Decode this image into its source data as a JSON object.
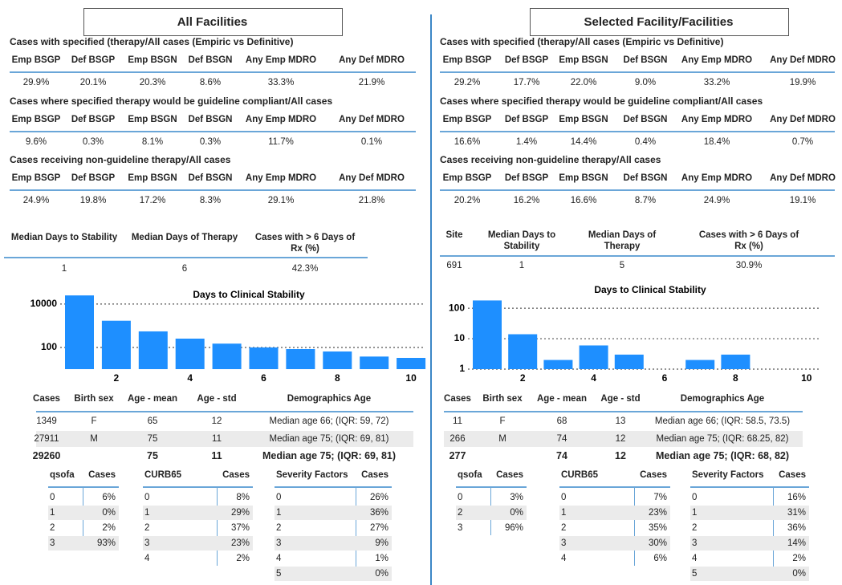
{
  "panels": [
    {
      "title": "All Facilities",
      "sections": [
        {
          "heading": "Cases with specified (therapy/All cases (Empiric vs Definitive)",
          "columns": [
            "Emp BSGP",
            "Def BSGP",
            "Emp BSGN",
            "Def BSGN",
            "Any Emp MDRO",
            "Any Def MDRO"
          ],
          "values": [
            "29.9%",
            "20.1%",
            "20.3%",
            "8.6%",
            "33.3%",
            "21.9%"
          ]
        },
        {
          "heading": "Cases where specified therapy would be guideline compliant/All cases",
          "columns": [
            "Emp BSGP",
            "Def BSGP",
            "Emp BSGN",
            "Def BSGN",
            "Any Emp MDRO",
            "Any Def MDRO"
          ],
          "values": [
            "9.6%",
            "0.3%",
            "8.1%",
            "0.3%",
            "11.7%",
            "0.1%"
          ]
        },
        {
          "heading": "Cases receiving non-guideline therapy/All cases",
          "columns": [
            "Emp BSGP",
            "Def BSGP",
            "Emp BSGN",
            "Def BSGN",
            "Any Emp MDRO",
            "Any Def MDRO"
          ],
          "values": [
            "24.9%",
            "19.8%",
            "17.2%",
            "8.3%",
            "29.1%",
            "21.8%"
          ]
        }
      ],
      "summary": {
        "columns": [
          "Median Days to Stability",
          "Median Days of Therapy",
          "Cases with > 6 Days of Rx (%)"
        ],
        "values": [
          "1",
          "6",
          "42.3%"
        ]
      },
      "demographics": {
        "columns": [
          "Cases",
          "Birth sex",
          "Age - mean",
          "Age - std",
          "Demographics Age"
        ],
        "rows": [
          [
            "1349",
            "F",
            "65",
            "12",
            "Median age 66; (IQR: 59, 72)"
          ],
          [
            "27911",
            "M",
            "75",
            "11",
            "Median age 75; (IQR: 69, 81)"
          ]
        ],
        "total": [
          "29260",
          "75",
          "11",
          "Median age 75; (IQR: 69, 81)"
        ]
      },
      "breakdowns": [
        {
          "columns": [
            "qsofa",
            "Cases"
          ],
          "rows": [
            [
              "0",
              "6%"
            ],
            [
              "1",
              "0%"
            ],
            [
              "2",
              "2%"
            ],
            [
              "3",
              "93%"
            ]
          ]
        },
        {
          "columns": [
            "CURB65",
            "Cases"
          ],
          "rows": [
            [
              "0",
              "8%"
            ],
            [
              "1",
              "29%"
            ],
            [
              "2",
              "37%"
            ],
            [
              "3",
              "23%"
            ],
            [
              "4",
              "2%"
            ]
          ]
        },
        {
          "columns": [
            "Severity Factors",
            "Cases"
          ],
          "rows": [
            [
              "0",
              "26%"
            ],
            [
              "1",
              "36%"
            ],
            [
              "2",
              "27%"
            ],
            [
              "3",
              "9%"
            ],
            [
              "4",
              "1%"
            ],
            [
              "5",
              "0%"
            ]
          ]
        }
      ]
    },
    {
      "title": "Selected Facility/Facilities",
      "sections": [
        {
          "heading": "Cases with specified (therapy/All cases (Empiric vs Definitive)",
          "columns": [
            "Emp BSGP",
            "Def BSGP",
            "Emp BSGN",
            "Def BSGN",
            "Any Emp MDRO",
            "Any Def MDRO"
          ],
          "values": [
            "29.2%",
            "17.7%",
            "22.0%",
            "9.0%",
            "33.2%",
            "19.9%"
          ]
        },
        {
          "heading": "Cases where specified therapy would be guideline compliant/All cases",
          "columns": [
            "Emp BSGP",
            "Def BSGP",
            "Emp BSGN",
            "Def BSGN",
            "Any Emp MDRO",
            "Any Def MDRO"
          ],
          "values": [
            "16.6%",
            "1.4%",
            "14.4%",
            "0.4%",
            "18.4%",
            "0.7%"
          ]
        },
        {
          "heading": "Cases receiving non-guideline therapy/All cases",
          "columns": [
            "Emp BSGP",
            "Def BSGP",
            "Emp BSGN",
            "Def BSGN",
            "Any Emp MDRO",
            "Any Def MDRO"
          ],
          "values": [
            "20.2%",
            "16.2%",
            "16.6%",
            "8.7%",
            "24.9%",
            "19.1%"
          ]
        }
      ],
      "summary": {
        "columns": [
          "Site",
          "Median Days to Stability",
          "Median Days of Therapy",
          "Cases with > 6 Days of Rx (%)"
        ],
        "values": [
          "691",
          "1",
          "5",
          "30.9%"
        ]
      },
      "demographics": {
        "columns": [
          "Cases",
          "Birth sex",
          "Age - mean",
          "Age - std",
          "Demographics Age"
        ],
        "rows": [
          [
            "11",
            "F",
            "68",
            "13",
            "Median age 66; (IQR: 58.5, 73.5)"
          ],
          [
            "266",
            "M",
            "74",
            "12",
            "Median age 75; (IQR: 68.25, 82)"
          ]
        ],
        "total": [
          "277",
          "74",
          "12",
          "Median age 75; (IQR: 68, 82)"
        ]
      },
      "breakdowns": [
        {
          "columns": [
            "qsofa",
            "Cases"
          ],
          "rows": [
            [
              "0",
              "3%"
            ],
            [
              "2",
              "0%"
            ],
            [
              "3",
              "96%"
            ]
          ]
        },
        {
          "columns": [
            "CURB65",
            "Cases"
          ],
          "rows": [
            [
              "0",
              "7%"
            ],
            [
              "1",
              "23%"
            ],
            [
              "2",
              "35%"
            ],
            [
              "3",
              "30%"
            ],
            [
              "4",
              "6%"
            ]
          ]
        },
        {
          "columns": [
            "Severity Factors",
            "Cases"
          ],
          "rows": [
            [
              "0",
              "16%"
            ],
            [
              "1",
              "31%"
            ],
            [
              "2",
              "36%"
            ],
            [
              "3",
              "14%"
            ],
            [
              "4",
              "2%"
            ],
            [
              "5",
              "0%"
            ]
          ]
        }
      ]
    }
  ],
  "chart_data": [
    {
      "type": "bar",
      "title": "Days to Clinical Stability",
      "x": [
        1,
        2,
        3,
        4,
        5,
        6,
        7,
        8,
        9,
        10
      ],
      "values": [
        25000,
        1700,
        550,
        255,
        150,
        100,
        84,
        65,
        38,
        33
      ],
      "color": "#1e8fff",
      "log_scale": true,
      "ylim": [
        10,
        50000
      ],
      "yticks": [
        100,
        10000
      ],
      "xlim": [
        0.5,
        10.5
      ],
      "xticks": [
        2,
        4,
        6,
        8,
        10
      ],
      "grid": true
    },
    {
      "type": "bar",
      "title": "Days to Clinical Stability",
      "x": [
        1,
        2,
        3,
        4,
        5,
        6,
        7,
        8,
        9,
        10
      ],
      "values": [
        180,
        14,
        2,
        6,
        3,
        null,
        2,
        3,
        null,
        null
      ],
      "color": "#1e8fff",
      "log_scale": true,
      "ylim": [
        1,
        300
      ],
      "yticks": [
        1,
        10,
        100
      ],
      "xlim": [
        0.5,
        10.5
      ],
      "xticks": [
        2,
        4,
        6,
        8,
        10
      ],
      "grid": true
    }
  ]
}
